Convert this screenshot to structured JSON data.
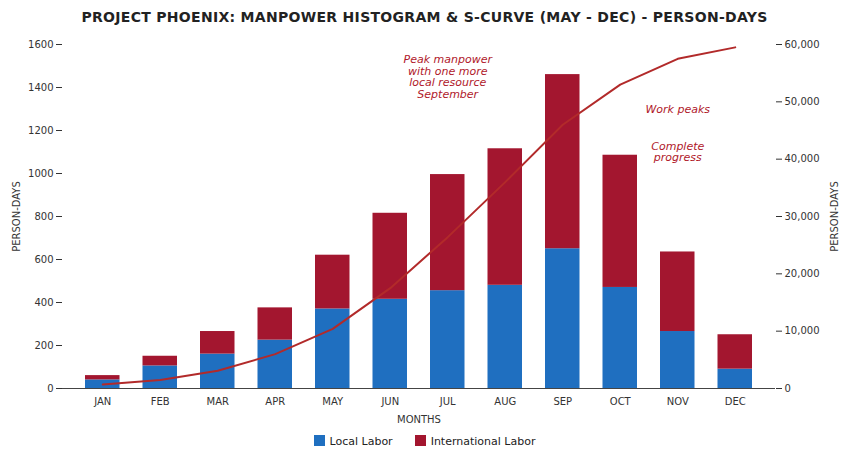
{
  "chart_data": {
    "type": "bar",
    "title": "PROJECT PHOENIX: MANPOWER HISTOGRAM & S-CURVE (MAY - DEC) - PERSON-DAYS",
    "x_label": "MONTHS",
    "y_label": "PERSON-DAYS",
    "y2_label": "PERSON-DAYS",
    "categories": [
      "JAN",
      "FEB",
      "MAR",
      "APR",
      "MAY",
      "JUN",
      "JUL",
      "AUG",
      "SEP",
      "OCT",
      "NOV",
      "DEC"
    ],
    "series": [
      {
        "name": "Local Labor",
        "color": "#1f6fc0",
        "values": [
          40,
          105,
          160,
          225,
          370,
          415,
          455,
          480,
          650,
          470,
          265,
          90
        ]
      },
      {
        "name": "International Labor",
        "color": "#a3162f",
        "values": [
          20,
          45,
          105,
          150,
          250,
          400,
          540,
          635,
          810,
          615,
          370,
          160
        ]
      },
      {
        "type": "line",
        "axis": "y2",
        "color": "#b22a2a",
        "values": [
          700,
          1500,
          3100,
          6000,
          10400,
          17500,
          26400,
          36000,
          46000,
          53000,
          57500,
          59500
        ]
      }
    ],
    "stacked": true,
    "ylim": [
      0,
      1600
    ],
    "yticks": [
      0,
      200,
      400,
      600,
      800,
      1000,
      1200,
      1400,
      1600
    ],
    "y2lim": [
      0,
      60000
    ],
    "y2ticks": [
      0,
      {
        "value": 10000,
        "label": "10,000"
      },
      {
        "value": 20000,
        "label": "20,000"
      },
      {
        "value": 30000,
        "label": "30,000"
      },
      {
        "value": 40000,
        "label": "40,000"
      },
      {
        "value": 50000,
        "label": "50,000"
      },
      {
        "value": 60000,
        "label": "60,000"
      }
    ],
    "grid": false,
    "legend": "bottom",
    "annotations": [
      {
        "text": "Peak manpower with one more local resource September",
        "x": "JUL",
        "y": 1450
      },
      {
        "text": "Work peaks",
        "x": "NOV",
        "y": 1300
      },
      {
        "text": "Complete progress",
        "x": "NOV",
        "y": 1100
      }
    ]
  }
}
